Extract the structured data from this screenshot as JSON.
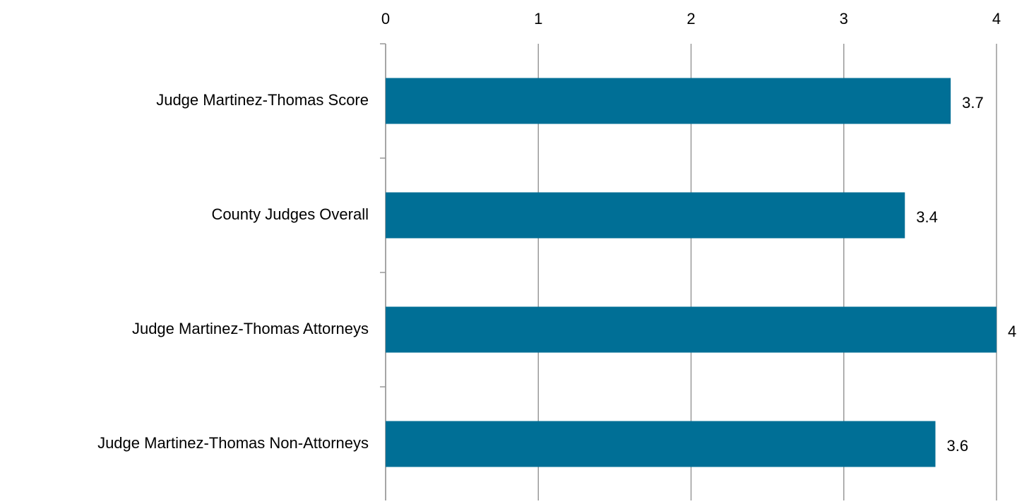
{
  "chart_data": {
    "type": "bar",
    "orientation": "horizontal",
    "categories": [
      "Judge Martinez-Thomas Score",
      "County Judges Overall",
      "Judge Martinez-Thomas Attorneys",
      "Judge Martinez-Thomas Non-Attorneys"
    ],
    "values": [
      3.7,
      3.4,
      4,
      3.6
    ],
    "color": "#006f96",
    "xlim": [
      0,
      4
    ],
    "xticks": [
      0,
      1,
      2,
      3,
      4
    ],
    "grid": true
  }
}
